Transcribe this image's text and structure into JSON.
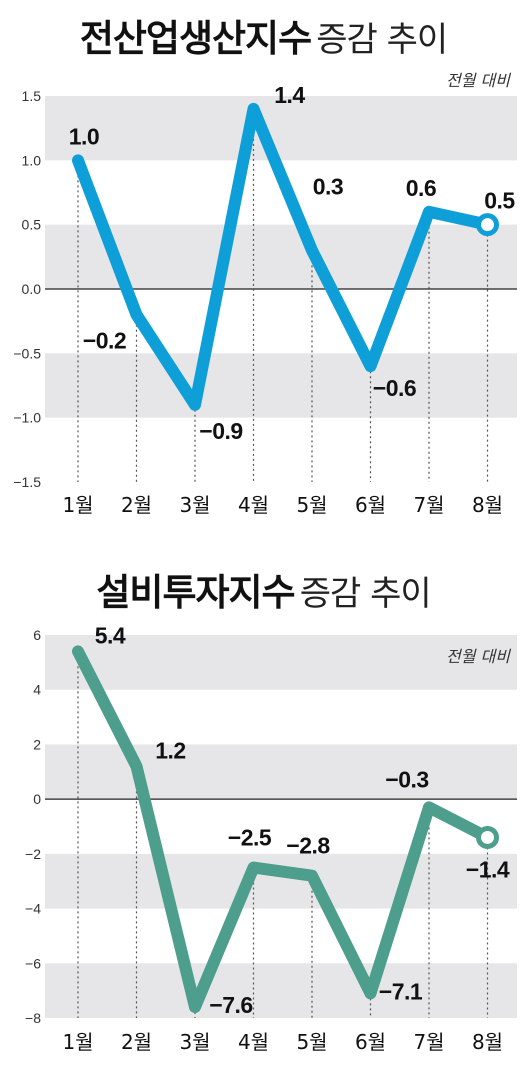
{
  "chart_data": [
    {
      "type": "line",
      "title_main": "전산업생산지수",
      "title_sub": "증감 추이",
      "note": "전월 대비",
      "categories": [
        "1월",
        "2월",
        "3월",
        "4월",
        "5월",
        "6월",
        "7월",
        "8월"
      ],
      "series": [
        {
          "values": [
            1.0,
            -0.2,
            -0.9,
            1.4,
            0.3,
            -0.6,
            0.6,
            0.5
          ]
        }
      ],
      "value_labels": [
        "1.0",
        "−0.2",
        "−0.9",
        "1.4",
        "0.3",
        "−0.6",
        "0.6",
        "0.5"
      ],
      "ylim": [
        -1.5,
        1.5
      ],
      "yticks": [
        1.5,
        1.0,
        0.5,
        0.0,
        -0.5,
        -1.0,
        -1.5
      ],
      "ytick_labels": [
        "1.5",
        "1.0",
        "0.5",
        "0.0",
        "−0.5",
        "−1.0",
        "−1.5"
      ],
      "color": "#0f9fd8",
      "grid": "alternating horizontal bands"
    },
    {
      "type": "line",
      "title_main": "설비투자지수",
      "title_sub": "증감 추이",
      "note": "전월 대비",
      "categories": [
        "1월",
        "2월",
        "3월",
        "4월",
        "5월",
        "6월",
        "7월",
        "8월"
      ],
      "series": [
        {
          "values": [
            5.4,
            1.2,
            -7.6,
            -2.5,
            -2.8,
            -7.1,
            -0.3,
            -1.4
          ]
        }
      ],
      "value_labels": [
        "5.4",
        "1.2",
        "−7.6",
        "−2.5",
        "−2.8",
        "−7.1",
        "−0.3",
        "−1.4"
      ],
      "ylim": [
        -8,
        6
      ],
      "yticks": [
        6,
        4,
        2,
        0,
        -2,
        -4,
        -6,
        -8
      ],
      "ytick_labels": [
        "6",
        "4",
        "2",
        "0",
        "−2",
        "−4",
        "−6",
        "−8"
      ],
      "color": "#4d9e8c",
      "grid": "alternating horizontal bands"
    }
  ]
}
